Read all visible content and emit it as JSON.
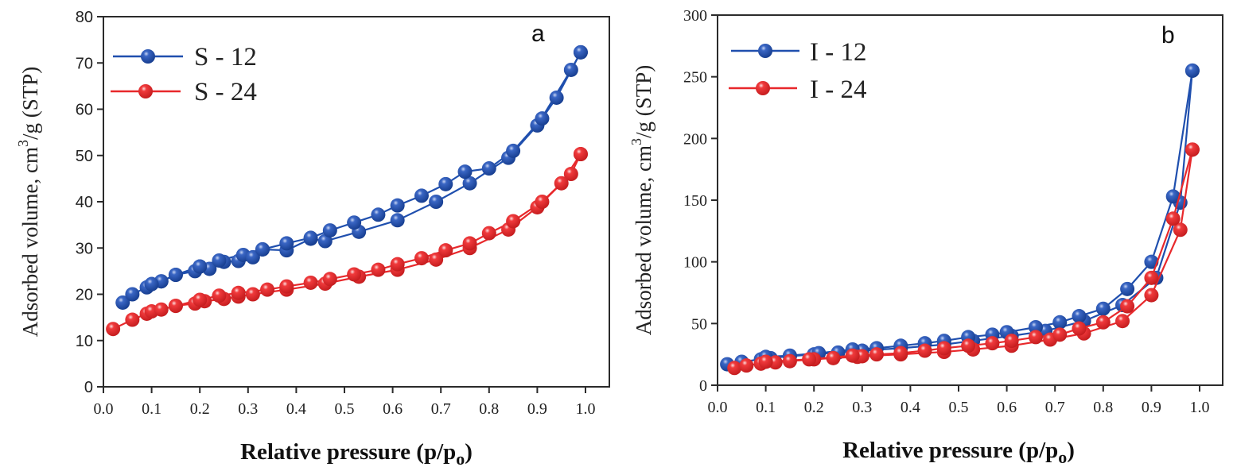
{
  "chart_data": [
    {
      "id": "a",
      "type": "line",
      "panel_label": "a",
      "title": "",
      "xlabel": "Relative pressure (p/p",
      "xlabel_sub": "o",
      "xlabel_end": ")",
      "ylabel": "Adsorbed volume, cm",
      "ylabel_sup": "3",
      "ylabel_end": "/g (STP)",
      "xlim": [
        0.0,
        1.0
      ],
      "ylim": [
        0,
        80
      ],
      "xticks": [
        0.0,
        0.1,
        0.2,
        0.3,
        0.4,
        0.5,
        0.6,
        0.7,
        0.8,
        0.9,
        1.0
      ],
      "xtick_labels": [
        "0.0",
        "0.1",
        "0.2",
        "0.3",
        "0.4",
        "0.5",
        "0.6",
        "0.7",
        "0.8",
        "0.9",
        "1.0"
      ],
      "yticks": [
        0,
        10,
        20,
        30,
        40,
        50,
        60,
        70,
        80
      ],
      "ytick_labels": [
        "0",
        "10",
        "20",
        "30",
        "40",
        "50",
        "60",
        "70",
        "80"
      ],
      "grid": false,
      "legend_position": "top-left",
      "series": [
        {
          "name": "S - 12",
          "color": "#1f4fae",
          "adsorption": [
            [
              0.04,
              18.2
            ],
            [
              0.06,
              20.0
            ],
            [
              0.09,
              21.5
            ],
            [
              0.1,
              22.2
            ],
            [
              0.12,
              22.8
            ],
            [
              0.15,
              24.2
            ],
            [
              0.19,
              25.0
            ],
            [
              0.2,
              26.0
            ],
            [
              0.22,
              25.5
            ],
            [
              0.25,
              27.0
            ],
            [
              0.28,
              27.2
            ],
            [
              0.29,
              28.5
            ],
            [
              0.31,
              28.0
            ],
            [
              0.33,
              29.7
            ],
            [
              0.38,
              29.5
            ],
            [
              0.43,
              32.0
            ],
            [
              0.46,
              31.5
            ],
            [
              0.53,
              33.5
            ],
            [
              0.61,
              36.0
            ],
            [
              0.69,
              40.0
            ],
            [
              0.76,
              44.0
            ],
            [
              0.84,
              49.5
            ],
            [
              0.9,
              56.5
            ],
            [
              0.97,
              68.5
            ],
            [
              0.99,
              72.3
            ]
          ],
          "desorption": [
            [
              0.99,
              72.3
            ],
            [
              0.94,
              62.5
            ],
            [
              0.91,
              58.0
            ],
            [
              0.85,
              51.0
            ],
            [
              0.8,
              47.2
            ],
            [
              0.75,
              46.5
            ],
            [
              0.71,
              43.8
            ],
            [
              0.66,
              41.3
            ],
            [
              0.61,
              39.2
            ],
            [
              0.57,
              37.2
            ],
            [
              0.52,
              35.5
            ],
            [
              0.47,
              33.8
            ],
            [
              0.43,
              32.2
            ],
            [
              0.38,
              31.0
            ],
            [
              0.33,
              29.7
            ],
            [
              0.24,
              27.3
            ],
            [
              0.2,
              26.0
            ],
            [
              0.15,
              24.2
            ],
            [
              0.12,
              22.8
            ],
            [
              0.1,
              22.2
            ]
          ]
        },
        {
          "name": "S - 24",
          "color": "#e8282b",
          "adsorption": [
            [
              0.02,
              12.5
            ],
            [
              0.06,
              14.5
            ],
            [
              0.09,
              15.8
            ],
            [
              0.1,
              16.3
            ],
            [
              0.12,
              16.7
            ],
            [
              0.15,
              17.5
            ],
            [
              0.19,
              18.0
            ],
            [
              0.21,
              18.5
            ],
            [
              0.25,
              19.0
            ],
            [
              0.28,
              19.5
            ],
            [
              0.31,
              20.0
            ],
            [
              0.38,
              21.0
            ],
            [
              0.46,
              22.3
            ],
            [
              0.53,
              23.8
            ],
            [
              0.61,
              25.3
            ],
            [
              0.69,
              27.5
            ],
            [
              0.76,
              30.0
            ],
            [
              0.84,
              34.0
            ],
            [
              0.9,
              38.8
            ],
            [
              0.97,
              46.0
            ],
            [
              0.99,
              50.3
            ]
          ],
          "desorption": [
            [
              0.99,
              50.3
            ],
            [
              0.95,
              44.0
            ],
            [
              0.91,
              40.0
            ],
            [
              0.85,
              35.8
            ],
            [
              0.8,
              33.2
            ],
            [
              0.76,
              31.0
            ],
            [
              0.71,
              29.5
            ],
            [
              0.66,
              27.8
            ],
            [
              0.61,
              26.5
            ],
            [
              0.57,
              25.3
            ],
            [
              0.52,
              24.3
            ],
            [
              0.47,
              23.3
            ],
            [
              0.43,
              22.5
            ],
            [
              0.38,
              21.7
            ],
            [
              0.34,
              21.0
            ],
            [
              0.28,
              20.3
            ],
            [
              0.24,
              19.7
            ],
            [
              0.2,
              18.8
            ],
            [
              0.15,
              17.5
            ]
          ]
        }
      ]
    },
    {
      "id": "b",
      "type": "line",
      "panel_label": "b",
      "title": "",
      "xlabel": "Relative pressure (p/p",
      "xlabel_sub": "o",
      "xlabel_end": ")",
      "ylabel": "Adsorbed volume, cm",
      "ylabel_sup": "3",
      "ylabel_end": "/g (STP)",
      "xlim": [
        0.0,
        1.0
      ],
      "ylim": [
        0,
        300
      ],
      "xticks": [
        0.0,
        0.1,
        0.2,
        0.3,
        0.4,
        0.5,
        0.6,
        0.7,
        0.8,
        0.9,
        1.0
      ],
      "xtick_labels": [
        "0.0",
        "0.1",
        "0.2",
        "0.3",
        "0.4",
        "0.5",
        "0.6",
        "0.7",
        "0.8",
        "0.9",
        "1.0"
      ],
      "yticks": [
        0,
        50,
        100,
        150,
        200,
        250,
        300
      ],
      "ytick_labels": [
        "0",
        "50",
        "100",
        "150",
        "200",
        "250",
        "300"
      ],
      "grid": false,
      "legend_position": "top-left",
      "series": [
        {
          "name": "I - 12",
          "color": "#1f4fae",
          "adsorption": [
            [
              0.02,
              17
            ],
            [
              0.05,
              19
            ],
            [
              0.09,
              21
            ],
            [
              0.11,
              22
            ],
            [
              0.15,
              23.5
            ],
            [
              0.2,
              25
            ],
            [
              0.25,
              26.5
            ],
            [
              0.3,
              28
            ],
            [
              0.38,
              30
            ],
            [
              0.47,
              33
            ],
            [
              0.53,
              36
            ],
            [
              0.61,
              40
            ],
            [
              0.68,
              44
            ],
            [
              0.76,
              52
            ],
            [
              0.84,
              65
            ],
            [
              0.91,
              87
            ],
            [
              0.96,
              148
            ],
            [
              0.985,
              255
            ]
          ],
          "desorption": [
            [
              0.985,
              255
            ],
            [
              0.945,
              153
            ],
            [
              0.9,
              100
            ],
            [
              0.85,
              78
            ],
            [
              0.8,
              62
            ],
            [
              0.75,
              56
            ],
            [
              0.71,
              51
            ],
            [
              0.66,
              47
            ],
            [
              0.6,
              43
            ],
            [
              0.57,
              41
            ],
            [
              0.52,
              39
            ],
            [
              0.47,
              36
            ],
            [
              0.43,
              34
            ],
            [
              0.38,
              32
            ],
            [
              0.33,
              30
            ],
            [
              0.28,
              29
            ],
            [
              0.21,
              26
            ],
            [
              0.15,
              24
            ],
            [
              0.1,
              23
            ]
          ]
        },
        {
          "name": "I - 24",
          "color": "#e8282b",
          "adsorption": [
            [
              0.035,
              14
            ],
            [
              0.06,
              16
            ],
            [
              0.09,
              17.5
            ],
            [
              0.12,
              18.5
            ],
            [
              0.15,
              19.5
            ],
            [
              0.2,
              21
            ],
            [
              0.24,
              22
            ],
            [
              0.29,
              23
            ],
            [
              0.3,
              23.5
            ],
            [
              0.38,
              25
            ],
            [
              0.47,
              27
            ],
            [
              0.53,
              29
            ],
            [
              0.61,
              32
            ],
            [
              0.69,
              37
            ],
            [
              0.76,
              42
            ],
            [
              0.84,
              52
            ],
            [
              0.9,
              73
            ],
            [
              0.96,
              126
            ],
            [
              0.985,
              191
            ]
          ],
          "desorption": [
            [
              0.985,
              191
            ],
            [
              0.945,
              135
            ],
            [
              0.9,
              87
            ],
            [
              0.85,
              64
            ],
            [
              0.8,
              51
            ],
            [
              0.75,
              46
            ],
            [
              0.71,
              41
            ],
            [
              0.66,
              39
            ],
            [
              0.61,
              36
            ],
            [
              0.57,
              34
            ],
            [
              0.52,
              32
            ],
            [
              0.47,
              30
            ],
            [
              0.43,
              28
            ],
            [
              0.38,
              26
            ],
            [
              0.33,
              25
            ],
            [
              0.28,
              24
            ],
            [
              0.19,
              21
            ],
            [
              0.1,
              19
            ]
          ]
        }
      ]
    }
  ]
}
